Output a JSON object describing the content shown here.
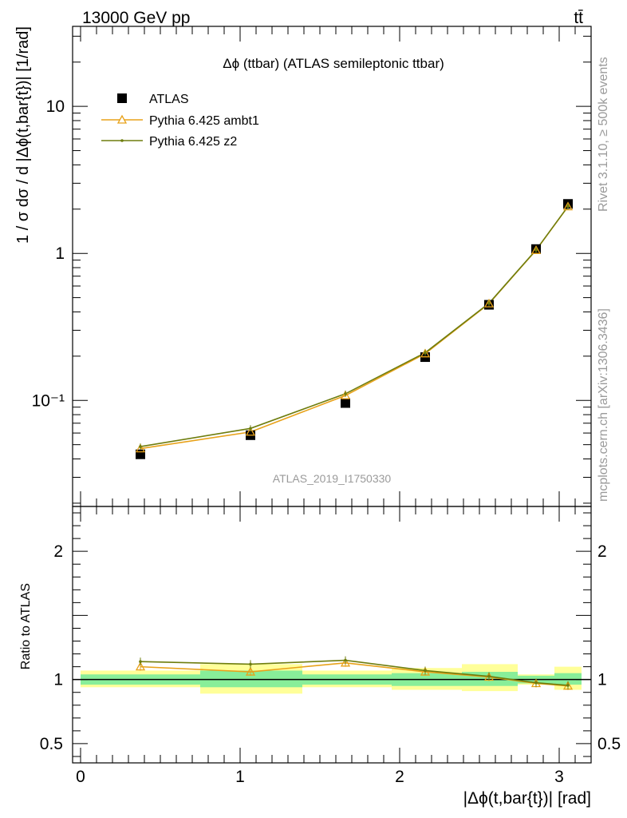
{
  "header": {
    "left": "13000 GeV pp",
    "right": "tt̄"
  },
  "side_labels": {
    "top": "Rivet 3.1.10, ≥ 500k events",
    "bottom": "mcplots.cern.ch [arXiv:1306.3436]"
  },
  "watermark": "ATLAS_2019_I1750330",
  "chart_data": [
    {
      "type": "line",
      "title": "Δϕ (ttbar) (ATLAS semileptonic ttbar)",
      "ylabel": "1 / σ dσ / d |Δϕ(t,bar{t})| [1/rad]",
      "yscale": "log",
      "ylim": [
        0.019,
        35
      ],
      "xlim": [
        -0.05,
        3.2
      ],
      "y_ticks": [
        {
          "value": 0.1,
          "label": "10⁻¹"
        },
        {
          "value": 1,
          "label": "1"
        },
        {
          "value": 10,
          "label": "10"
        }
      ],
      "legend_position": "top-left",
      "x": [
        0.375,
        1.065,
        1.66,
        2.16,
        2.56,
        2.855,
        3.055
      ],
      "series": [
        {
          "name": "ATLAS",
          "marker": "square",
          "color": "#000000",
          "values": [
            0.043,
            0.058,
            0.096,
            0.197,
            0.447,
            1.07,
            2.17
          ]
        },
        {
          "name": "Pythia 6.425 ambt1",
          "marker": "triangle",
          "color": "#e8a21a",
          "values": [
            0.047,
            0.061,
            0.108,
            0.208,
            0.455,
            1.05,
            2.08
          ]
        },
        {
          "name": "Pythia 6.425 z2",
          "marker": "dot",
          "color": "#6e7d0e",
          "values": [
            0.0485,
            0.0645,
            0.111,
            0.211,
            0.458,
            1.055,
            2.085
          ]
        }
      ]
    },
    {
      "type": "line",
      "ylabel": "Ratio to ATLAS",
      "xlabel": "|Δϕ(t,bar{t})| [rad]",
      "ylim": [
        0.35,
        2.35
      ],
      "xlim": [
        -0.05,
        3.2
      ],
      "x_ticks": [
        0,
        1,
        2,
        3
      ],
      "y_ticks": [
        0.5,
        1,
        2
      ],
      "reference": 1,
      "x": [
        0.375,
        1.065,
        1.66,
        2.16,
        2.56,
        2.855,
        3.055
      ],
      "uncertainty_bands": [
        {
          "x0": 0.0,
          "x1": 0.75,
          "stat": [
            0.96,
            1.04
          ],
          "total": [
            0.94,
            1.07
          ]
        },
        {
          "x0": 0.75,
          "x1": 1.39,
          "stat": [
            0.94,
            1.07
          ],
          "total": [
            0.89,
            1.12
          ]
        },
        {
          "x0": 1.39,
          "x1": 1.95,
          "stat": [
            0.96,
            1.04
          ],
          "total": [
            0.94,
            1.07
          ]
        },
        {
          "x0": 1.95,
          "x1": 2.39,
          "stat": [
            0.95,
            1.05
          ],
          "total": [
            0.92,
            1.09
          ]
        },
        {
          "x0": 2.39,
          "x1": 2.74,
          "stat": [
            0.95,
            1.06
          ],
          "total": [
            0.91,
            1.12
          ]
        },
        {
          "x0": 2.74,
          "x1": 2.97,
          "stat": [
            0.97,
            1.03
          ],
          "total": [
            0.96,
            1.04
          ]
        },
        {
          "x0": 2.97,
          "x1": 3.14,
          "stat": [
            0.96,
            1.05
          ],
          "total": [
            0.92,
            1.1
          ]
        }
      ],
      "series": [
        {
          "name": "Pythia 6.425 ambt1",
          "color": "#e8a21a",
          "values": [
            1.1,
            1.06,
            1.13,
            1.06,
            1.02,
            0.97,
            0.95
          ]
        },
        {
          "name": "Pythia 6.425 z2",
          "color": "#6e7d0e",
          "values": [
            1.14,
            1.12,
            1.15,
            1.07,
            1.025,
            0.975,
            0.955
          ]
        }
      ]
    }
  ]
}
